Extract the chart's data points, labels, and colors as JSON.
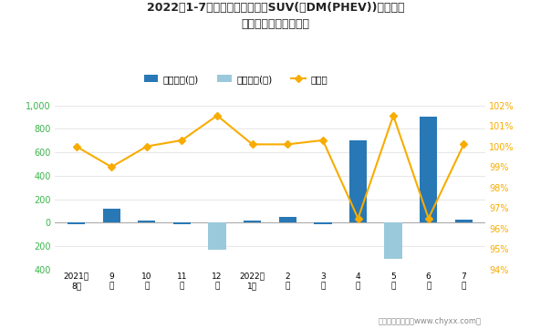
{
  "title_line1": "2022年1-7月比亚迪旗下最畅销SUV(宋DM(PHEV))近一年库",
  "title_line2": "存情况及产销率统计图",
  "categories": [
    "2021年\n8月",
    "9\n月",
    "10\n月",
    "11\n月",
    "12\n月",
    "2022年\n1月",
    "2\n月",
    "3\n月",
    "4\n月",
    "5\n月",
    "6\n月",
    "7\n月"
  ],
  "bar1_values": [
    -10,
    120,
    20,
    -10,
    0,
    20,
    50,
    -10,
    700,
    0,
    900,
    30
  ],
  "bar2_values": [
    0,
    0,
    0,
    0,
    -230,
    0,
    0,
    0,
    0,
    -310,
    0,
    0
  ],
  "line_values": [
    100.0,
    99.0,
    100.0,
    100.3,
    101.5,
    100.1,
    100.1,
    100.3,
    96.5,
    101.5,
    96.5,
    100.1
  ],
  "bar1_color": "#2878b5",
  "bar2_color": "#9ac9db",
  "line_color": "#f8ac00",
  "marker_color": "#f8ac00",
  "left_ylim": [
    -400,
    1000
  ],
  "right_ylim": [
    94,
    102
  ],
  "left_yticks": [
    -400,
    -200,
    0,
    200,
    400,
    600,
    800,
    1000
  ],
  "right_yticks": [
    94,
    95,
    96,
    97,
    98,
    99,
    100,
    101,
    102
  ],
  "legend_labels": [
    "积压库存(辆)",
    "清仓库存(辆)",
    "产销率"
  ],
  "footer": "制图：智研咨询（www.chyxx.com）",
  "background_color": "#ffffff",
  "grid_color": "#dddddd"
}
